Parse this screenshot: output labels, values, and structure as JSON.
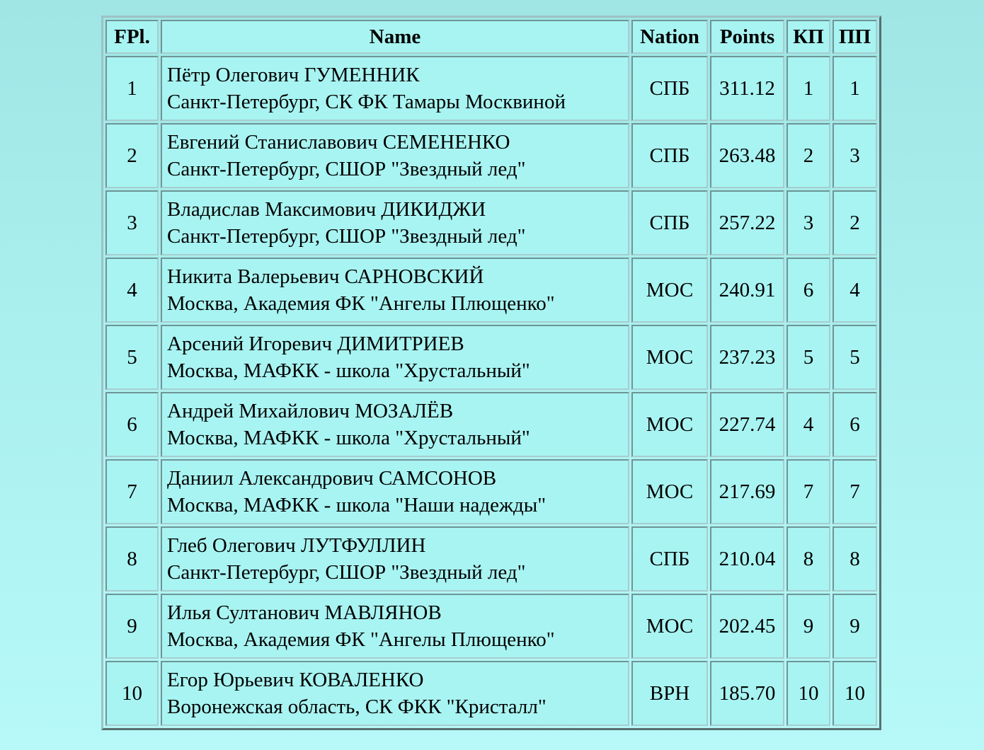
{
  "colors": {
    "page_background_top": "#9fe6e5",
    "page_background_bottom": "#b6f9f8",
    "cell_background": "#a8f4f2",
    "border_dark": "#6e9496",
    "border_light": "#a7cdce",
    "text": "#000000"
  },
  "table": {
    "columns": [
      {
        "key": "fpl",
        "label": "FPl."
      },
      {
        "key": "name",
        "label": "Name"
      },
      {
        "key": "nation",
        "label": "Nation"
      },
      {
        "key": "points",
        "label": "Points"
      },
      {
        "key": "kp",
        "label": "КП"
      },
      {
        "key": "pp",
        "label": "ПП"
      }
    ],
    "rows": [
      {
        "fpl": "1",
        "name": "Пётр Олегович ГУМЕННИК",
        "club": "Санкт-Петербург, СК ФК Тамары Москвиной",
        "nation": "СПБ",
        "points": "311.12",
        "kp": "1",
        "pp": "1"
      },
      {
        "fpl": "2",
        "name": "Евгений Станиславович СЕМЕНЕНКО",
        "club": "Санкт-Петербург, СШОР \"Звездный лед\"",
        "nation": "СПБ",
        "points": "263.48",
        "kp": "2",
        "pp": "3"
      },
      {
        "fpl": "3",
        "name": "Владислав Максимович ДИКИДЖИ",
        "club": "Санкт-Петербург, СШОР \"Звездный лед\"",
        "nation": "СПБ",
        "points": "257.22",
        "kp": "3",
        "pp": "2"
      },
      {
        "fpl": "4",
        "name": "Никита Валерьевич САРНОВСКИЙ",
        "club": "Москва, Академия ФК \"Ангелы Плющенко\"",
        "nation": "МОС",
        "points": "240.91",
        "kp": "6",
        "pp": "4"
      },
      {
        "fpl": "5",
        "name": "Арсений Игоревич ДИМИТРИЕВ",
        "club": "Москва, МАФКК - школа \"Хрустальный\"",
        "nation": "МОС",
        "points": "237.23",
        "kp": "5",
        "pp": "5"
      },
      {
        "fpl": "6",
        "name": "Андрей Михайлович МОЗАЛЁВ",
        "club": "Москва, МАФКК - школа \"Хрустальный\"",
        "nation": "МОС",
        "points": "227.74",
        "kp": "4",
        "pp": "6"
      },
      {
        "fpl": "7",
        "name": "Даниил Александрович САМСОНОВ",
        "club": "Москва, МАФКК - школа \"Наши надежды\"",
        "nation": "МОС",
        "points": "217.69",
        "kp": "7",
        "pp": "7"
      },
      {
        "fpl": "8",
        "name": "Глеб Олегович ЛУТФУЛЛИН",
        "club": "Санкт-Петербург, СШОР \"Звездный лед\"",
        "nation": "СПБ",
        "points": "210.04",
        "kp": "8",
        "pp": "8"
      },
      {
        "fpl": "9",
        "name": "Илья Султанович МАВЛЯНОВ",
        "club": "Москва, Академия ФК \"Ангелы Плющенко\"",
        "nation": "МОС",
        "points": "202.45",
        "kp": "9",
        "pp": "9"
      },
      {
        "fpl": "10",
        "name": "Егор Юрьевич КОВАЛЕНКО",
        "club": "Воронежская область, СК ФКК \"Кристалл\"",
        "nation": "ВРН",
        "points": "185.70",
        "kp": "10",
        "pp": "10"
      }
    ]
  }
}
